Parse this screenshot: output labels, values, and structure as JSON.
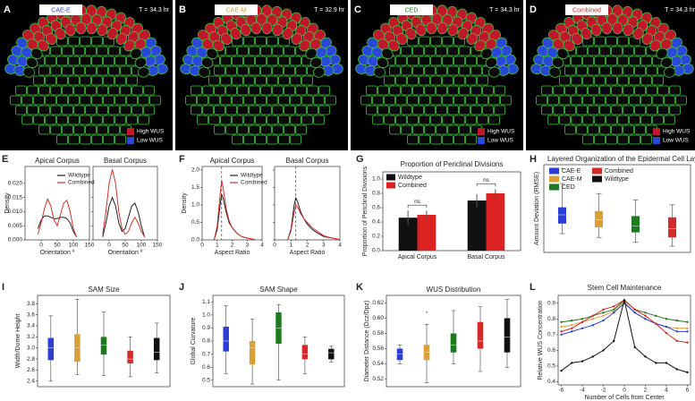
{
  "simulations": [
    {
      "label": "A",
      "name": "CAE-E",
      "name_color": "#2b3fd6",
      "time": "T = 34.3 hr",
      "legend": [
        "High WUS",
        "Low WUS"
      ]
    },
    {
      "label": "B",
      "name": "CAE-M",
      "name_color": "#d9a036",
      "time": "T = 32.9 hr"
    },
    {
      "label": "C",
      "name": "CED",
      "name_color": "#1f7a1f",
      "time": "T = 34.3 hr",
      "legend": [
        "High WUS",
        "Low WUS"
      ]
    },
    {
      "label": "D",
      "name": "Combined",
      "name_color": "#d42a2a",
      "time": "T = 34.3 hr",
      "legend": [
        "High WUS",
        "Low WUS"
      ]
    }
  ],
  "chart_data": [
    {
      "type": "line",
      "panel": "E",
      "ylabel": "Density",
      "ylim": [
        0,
        0.026
      ],
      "yticks": [
        {
          "value": 0,
          "label": "0.000"
        },
        0.005,
        {
          "value": 0.01,
          "label": "0.010"
        },
        0.015,
        {
          "value": 0.02,
          "label": "0.020"
        }
      ],
      "series_styles": [
        {
          "name": "Wildtype",
          "color": "#222222"
        },
        {
          "name": "Combined",
          "color": "#d9302c"
        }
      ],
      "subplots": [
        {
          "title": "Apical Corpus",
          "xlabel": "Orientation º",
          "xlim": [
            -50,
            150
          ],
          "xticks": [
            0,
            50,
            100,
            150
          ],
          "x": [
            -10,
            0,
            10,
            20,
            30,
            40,
            50,
            60,
            70,
            80,
            90,
            100,
            110
          ],
          "series": [
            {
              "values": [
                0.004,
                0.007,
                0.0085,
                0.0085,
                0.008,
                0.0075,
                0.0075,
                0.008,
                0.008,
                0.0075,
                0.006,
                0.003,
                0.001
              ]
            },
            {
              "values": [
                0.002,
                0.006,
                0.011,
                0.0145,
                0.012,
                0.007,
                0.005,
                0.009,
                0.013,
                0.014,
                0.01,
                0.004,
                0.001
              ]
            }
          ]
        },
        {
          "title": "Basal Corpus",
          "xlabel": "Orientation º",
          "xlim": [
            -50,
            150
          ],
          "xticks": [
            0,
            50,
            100,
            150
          ],
          "x": [
            -20,
            -10,
            0,
            10,
            20,
            30,
            40,
            50,
            60,
            70,
            80,
            90,
            100,
            110
          ],
          "series": [
            {
              "values": [
                0.001,
                0.006,
                0.012,
                0.015,
                0.012,
                0.006,
                0.003,
                0.004,
                0.008,
                0.012,
                0.013,
                0.01,
                0.005,
                0.001
              ]
            },
            {
              "values": [
                0.002,
                0.01,
                0.02,
                0.025,
                0.02,
                0.01,
                0.004,
                0.002,
                0.003,
                0.006,
                0.008,
                0.006,
                0.003,
                0.001
              ]
            }
          ]
        }
      ]
    },
    {
      "type": "line",
      "panel": "F",
      "ylabel": "Density",
      "ylim": [
        0,
        2.1
      ],
      "yticks": [
        {
          "value": 0,
          "label": "0.0"
        },
        0.5,
        {
          "value": 1,
          "label": "1.0"
        },
        1.5,
        {
          "value": 2,
          "label": "2.0"
        }
      ],
      "series_styles": [
        {
          "name": "Wildtype",
          "color": "#222222"
        },
        {
          "name": "Combined",
          "color": "#d9302c"
        }
      ],
      "subplots": [
        {
          "title": "Apical Corpus",
          "xlabel": "Aspect Ratio",
          "xlim": [
            0,
            4
          ],
          "xticks": [
            0,
            1,
            2,
            3,
            4
          ],
          "reference_x": 1.3,
          "x": [
            0.8,
            1.0,
            1.2,
            1.3,
            1.4,
            1.6,
            1.8,
            2.0,
            2.3,
            2.6,
            3.0,
            3.5
          ],
          "series": [
            {
              "values": [
                0,
                0.3,
                1.0,
                1.3,
                1.2,
                0.8,
                0.5,
                0.35,
                0.2,
                0.1,
                0.05,
                0.01
              ]
            },
            {
              "values": [
                0,
                0.4,
                1.3,
                1.7,
                1.5,
                0.9,
                0.55,
                0.35,
                0.2,
                0.1,
                0.05,
                0.01
              ]
            }
          ]
        },
        {
          "title": "Basal Corpus",
          "xlabel": "Aspect Ratio",
          "xlim": [
            0,
            4
          ],
          "xticks": [
            0,
            1,
            2,
            3,
            4
          ],
          "reference_x": 1.3,
          "x": [
            0.8,
            1.0,
            1.2,
            1.3,
            1.4,
            1.6,
            1.8,
            2.0,
            2.3,
            2.6,
            3.0,
            3.5,
            4.0
          ],
          "series": [
            {
              "values": [
                0,
                0.3,
                1.0,
                1.2,
                1.1,
                0.8,
                0.6,
                0.45,
                0.3,
                0.2,
                0.1,
                0.05,
                0.01
              ]
            },
            {
              "values": [
                0,
                0.25,
                0.8,
                1.0,
                0.95,
                0.75,
                0.6,
                0.5,
                0.35,
                0.25,
                0.12,
                0.05,
                0.01
              ]
            }
          ]
        }
      ]
    },
    {
      "type": "bar",
      "panel": "G",
      "title": "Proportion of Periclinal Divisions",
      "ylabel": "Proportion of Periclinal Divisions",
      "categories": [
        "Apical Corpus",
        "Basal Corpus"
      ],
      "ylim": [
        0,
        1.1
      ],
      "yticks": [
        {
          "value": 0,
          "label": "0.0"
        },
        0.2,
        0.4,
        0.6,
        0.8,
        {
          "value": 1,
          "label": "1.0"
        }
      ],
      "series": [
        {
          "name": "Wildtype",
          "color": "#111111",
          "values": [
            0.46,
            0.7
          ],
          "errors": [
            0.1,
            0.09
          ]
        },
        {
          "name": "Combined",
          "color": "#dd2222",
          "values": [
            0.5,
            0.8
          ],
          "errors": [
            0.06,
            0.06
          ]
        }
      ],
      "annotations": [
        "ns",
        "ns"
      ]
    },
    {
      "type": "box",
      "panel": "H",
      "title": "Layered Organization of the Epidermal Cell Layer",
      "ylabel": "Amount Deviation (RMSE)",
      "ylim": [
        3,
        10
      ],
      "legend": [
        {
          "name": "CAE-E",
          "color": "#2b3fd6"
        },
        {
          "name": "CAE-M",
          "color": "#d9a036"
        },
        {
          "name": "CED",
          "color": "#1f7a1f"
        },
        {
          "name": "Combined",
          "color": "#d42a2a"
        },
        {
          "name": "Wildtype",
          "color": "#111111"
        }
      ],
      "boxes": [
        {
          "color": "#2b3fd6",
          "min": 4.5,
          "q1": 5.3,
          "median": 6.0,
          "q3": 6.6,
          "max": 8.5,
          "outliers": [
            9.7
          ]
        },
        {
          "color": "#d9a036",
          "min": 4.2,
          "q1": 5.0,
          "median": 5.6,
          "q3": 6.3,
          "max": 7.7
        },
        {
          "color": "#1f7a1f",
          "min": 3.8,
          "q1": 4.6,
          "median": 5.1,
          "q3": 5.9,
          "max": 7.2
        },
        {
          "color": "#d42a2a",
          "min": 3.5,
          "q1": 4.2,
          "median": 4.9,
          "q3": 5.8,
          "max": 6.8
        }
      ]
    },
    {
      "type": "box",
      "panel": "I",
      "title": "SAM Size",
      "ylabel": "Width/Dome Height",
      "ylim": [
        2.3,
        3.95
      ],
      "yticks": [
        2.4,
        2.6,
        2.8,
        {
          "value": 3,
          "label": "3.0"
        },
        3.2,
        3.4,
        3.6,
        3.8
      ],
      "boxes": [
        {
          "color": "#2b3fd6",
          "min": 2.4,
          "q1": 2.78,
          "median": 3.0,
          "q3": 3.18,
          "max": 3.58
        },
        {
          "color": "#d9a036",
          "min": 2.52,
          "q1": 2.75,
          "median": 3.0,
          "q3": 3.25,
          "max": 3.88
        },
        {
          "color": "#1f7a1f",
          "min": 2.5,
          "q1": 2.88,
          "median": 3.05,
          "q3": 3.2,
          "max": 3.65
        },
        {
          "color": "#d42a2a",
          "min": 2.48,
          "q1": 2.72,
          "median": 2.8,
          "q3": 2.95,
          "max": 3.2
        },
        {
          "color": "#111111",
          "min": 2.55,
          "q1": 2.78,
          "median": 2.92,
          "q3": 3.18,
          "max": 3.45
        }
      ]
    },
    {
      "type": "box",
      "panel": "J",
      "title": "SAM Shape",
      "ylabel": "Global Curvature",
      "ylim": [
        0.45,
        1.15
      ],
      "yticks": [
        0.5,
        0.6,
        0.7,
        0.8,
        0.9,
        {
          "value": 1,
          "label": "1.0"
        },
        1.1
      ],
      "boxes": [
        {
          "color": "#2b3fd6",
          "min": 0.55,
          "q1": 0.72,
          "median": 0.8,
          "q3": 0.91,
          "max": 1.07
        },
        {
          "color": "#d9a036",
          "min": 0.47,
          "q1": 0.62,
          "median": 0.75,
          "q3": 0.8,
          "max": 0.97
        },
        {
          "color": "#1f7a1f",
          "min": 0.5,
          "q1": 0.78,
          "median": 0.9,
          "q3": 1.02,
          "max": 1.08
        },
        {
          "color": "#d42a2a",
          "min": 0.55,
          "q1": 0.66,
          "median": 0.7,
          "q3": 0.77,
          "max": 0.83
        },
        {
          "color": "#111111",
          "min": 0.64,
          "q1": 0.66,
          "median": 0.71,
          "q3": 0.74,
          "max": 0.76
        }
      ]
    },
    {
      "type": "box",
      "panel": "K",
      "title": "WUS Distribution",
      "ylabel": "Diameter Distance (Dcz/Dpz)",
      "ylim": [
        0.51,
        0.63
      ],
      "yticks": [
        0.52,
        0.54,
        0.56,
        0.58,
        {
          "value": 0.6,
          "label": "0.60"
        },
        0.62
      ],
      "boxes": [
        {
          "color": "#2b3fd6",
          "min": 0.54,
          "q1": 0.545,
          "median": 0.553,
          "q3": 0.56,
          "max": 0.565
        },
        {
          "color": "#d9a036",
          "min": 0.515,
          "q1": 0.545,
          "median": 0.555,
          "q3": 0.565,
          "max": 0.592,
          "outliers": [
            0.608
          ]
        },
        {
          "color": "#1f7a1f",
          "min": 0.54,
          "q1": 0.555,
          "median": 0.565,
          "q3": 0.58,
          "max": 0.61
        },
        {
          "color": "#d42a2a",
          "min": 0.53,
          "q1": 0.56,
          "median": 0.57,
          "q3": 0.595,
          "max": 0.615
        },
        {
          "color": "#111111",
          "min": 0.535,
          "q1": 0.555,
          "median": 0.575,
          "q3": 0.6,
          "max": 0.625
        }
      ]
    },
    {
      "type": "line",
      "panel": "L",
      "title": "Stem Cell Maintenance",
      "xlabel": "Number of Cells from Center",
      "ylabel": "Relative WUS Concentration",
      "x": [
        -6,
        -5,
        -4,
        -3,
        -2,
        -1,
        0,
        1,
        2,
        3,
        4,
        5,
        6
      ],
      "xlim": [
        -6.3,
        6.3
      ],
      "xticks": [
        -6,
        -4,
        -2,
        0,
        2,
        4,
        6
      ],
      "ylim": [
        0.38,
        0.95
      ],
      "yticks": [
        0.4,
        0.5,
        0.6,
        0.7,
        0.8,
        0.9
      ],
      "series": [
        {
          "color": "#1f7a1f",
          "values": [
            0.78,
            0.79,
            0.8,
            0.82,
            0.84,
            0.86,
            0.92,
            0.86,
            0.84,
            0.82,
            0.8,
            0.79,
            0.78
          ]
        },
        {
          "color": "#d9a036",
          "values": [
            0.75,
            0.76,
            0.78,
            0.8,
            0.82,
            0.85,
            0.91,
            0.84,
            0.8,
            0.77,
            0.75,
            0.74,
            0.74
          ]
        },
        {
          "color": "#2b3fd6",
          "values": [
            0.7,
            0.72,
            0.74,
            0.76,
            0.79,
            0.84,
            0.9,
            0.84,
            0.8,
            0.77,
            0.75,
            0.72,
            0.72
          ]
        },
        {
          "color": "#d42a2a",
          "values": [
            0.72,
            0.74,
            0.78,
            0.82,
            0.86,
            0.88,
            0.92,
            0.86,
            0.82,
            0.77,
            0.71,
            0.66,
            0.65
          ]
        },
        {
          "color": "#111111",
          "values": [
            0.47,
            0.52,
            0.53,
            0.56,
            0.6,
            0.66,
            0.92,
            0.62,
            0.56,
            0.52,
            0.52,
            0.48,
            0.46
          ]
        }
      ]
    }
  ]
}
